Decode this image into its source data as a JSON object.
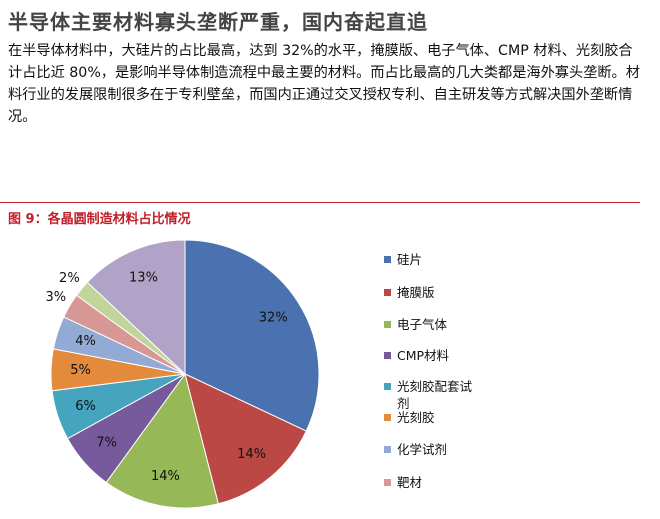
{
  "header": {
    "title": "半导体主要材料寡头垄断严重，国内奋起直追"
  },
  "paragraph": "在半导体材料中，大硅片的占比最高，达到 32%的水平，掩膜版、电子气体、CMP 材料、光刻胶合计占比近  80%，是影响半导体制造流程中最主要的材料。而占比最高的几大类都是海外寡头垄断。材料行业的发展限制很多在于专利壁垒，而国内正通过交叉授权专利、自主研发等方式解决国外垄断情况。",
  "figure": {
    "caption": "图 9：各晶圆制造材料占比情况",
    "chart_data": {
      "type": "pie",
      "categories": [
        "硅片",
        "掩膜版",
        "电子气体",
        "CMP材料",
        "光刻胶配套试剂",
        "光刻胶",
        "化学试剂",
        "靶材",
        null,
        null
      ],
      "values": [
        32,
        14,
        14,
        7,
        6,
        5,
        4,
        3,
        2,
        13
      ],
      "value_labels": [
        "32%",
        "14%",
        "14%",
        "7%",
        "6%",
        "5%",
        "4%",
        "3%",
        "2%",
        "13%"
      ],
      "colors": [
        "#4a72b0",
        "#bb4845",
        "#97b856",
        "#775a9c",
        "#46a4bf",
        "#e38a3c",
        "#93aad4",
        "#d79794",
        "#c1d59a",
        "#b1a2c8"
      ]
    }
  }
}
